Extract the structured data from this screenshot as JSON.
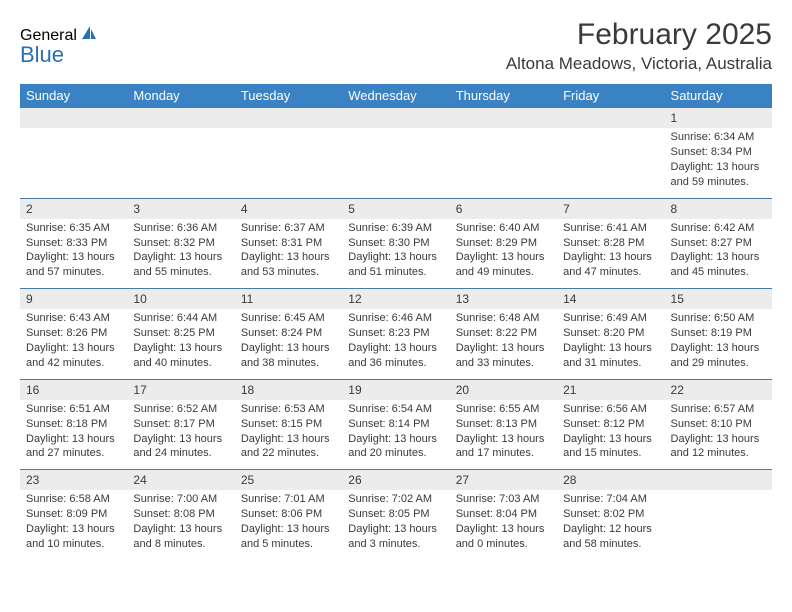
{
  "logo": {
    "text1": "General",
    "text2": "Blue"
  },
  "title": "February 2025",
  "location": "Altona Meadows, Victoria, Australia",
  "colors": {
    "header_bg": "#3b82c4",
    "header_text": "#ffffff",
    "daynum_bg": "#ececec",
    "border": "#4a7aa8",
    "text": "#3a3a3a",
    "logo_gray": "#5a5a5a",
    "logo_blue": "#2a6fb5"
  },
  "day_headers": [
    "Sunday",
    "Monday",
    "Tuesday",
    "Wednesday",
    "Thursday",
    "Friday",
    "Saturday"
  ],
  "weeks": [
    [
      null,
      null,
      null,
      null,
      null,
      null,
      {
        "n": "1",
        "sr": "6:34 AM",
        "ss": "8:34 PM",
        "dl": "13 hours and 59 minutes."
      }
    ],
    [
      {
        "n": "2",
        "sr": "6:35 AM",
        "ss": "8:33 PM",
        "dl": "13 hours and 57 minutes."
      },
      {
        "n": "3",
        "sr": "6:36 AM",
        "ss": "8:32 PM",
        "dl": "13 hours and 55 minutes."
      },
      {
        "n": "4",
        "sr": "6:37 AM",
        "ss": "8:31 PM",
        "dl": "13 hours and 53 minutes."
      },
      {
        "n": "5",
        "sr": "6:39 AM",
        "ss": "8:30 PM",
        "dl": "13 hours and 51 minutes."
      },
      {
        "n": "6",
        "sr": "6:40 AM",
        "ss": "8:29 PM",
        "dl": "13 hours and 49 minutes."
      },
      {
        "n": "7",
        "sr": "6:41 AM",
        "ss": "8:28 PM",
        "dl": "13 hours and 47 minutes."
      },
      {
        "n": "8",
        "sr": "6:42 AM",
        "ss": "8:27 PM",
        "dl": "13 hours and 45 minutes."
      }
    ],
    [
      {
        "n": "9",
        "sr": "6:43 AM",
        "ss": "8:26 PM",
        "dl": "13 hours and 42 minutes."
      },
      {
        "n": "10",
        "sr": "6:44 AM",
        "ss": "8:25 PM",
        "dl": "13 hours and 40 minutes."
      },
      {
        "n": "11",
        "sr": "6:45 AM",
        "ss": "8:24 PM",
        "dl": "13 hours and 38 minutes."
      },
      {
        "n": "12",
        "sr": "6:46 AM",
        "ss": "8:23 PM",
        "dl": "13 hours and 36 minutes."
      },
      {
        "n": "13",
        "sr": "6:48 AM",
        "ss": "8:22 PM",
        "dl": "13 hours and 33 minutes."
      },
      {
        "n": "14",
        "sr": "6:49 AM",
        "ss": "8:20 PM",
        "dl": "13 hours and 31 minutes."
      },
      {
        "n": "15",
        "sr": "6:50 AM",
        "ss": "8:19 PM",
        "dl": "13 hours and 29 minutes."
      }
    ],
    [
      {
        "n": "16",
        "sr": "6:51 AM",
        "ss": "8:18 PM",
        "dl": "13 hours and 27 minutes."
      },
      {
        "n": "17",
        "sr": "6:52 AM",
        "ss": "8:17 PM",
        "dl": "13 hours and 24 minutes."
      },
      {
        "n": "18",
        "sr": "6:53 AM",
        "ss": "8:15 PM",
        "dl": "13 hours and 22 minutes."
      },
      {
        "n": "19",
        "sr": "6:54 AM",
        "ss": "8:14 PM",
        "dl": "13 hours and 20 minutes."
      },
      {
        "n": "20",
        "sr": "6:55 AM",
        "ss": "8:13 PM",
        "dl": "13 hours and 17 minutes."
      },
      {
        "n": "21",
        "sr": "6:56 AM",
        "ss": "8:12 PM",
        "dl": "13 hours and 15 minutes."
      },
      {
        "n": "22",
        "sr": "6:57 AM",
        "ss": "8:10 PM",
        "dl": "13 hours and 12 minutes."
      }
    ],
    [
      {
        "n": "23",
        "sr": "6:58 AM",
        "ss": "8:09 PM",
        "dl": "13 hours and 10 minutes."
      },
      {
        "n": "24",
        "sr": "7:00 AM",
        "ss": "8:08 PM",
        "dl": "13 hours and 8 minutes."
      },
      {
        "n": "25",
        "sr": "7:01 AM",
        "ss": "8:06 PM",
        "dl": "13 hours and 5 minutes."
      },
      {
        "n": "26",
        "sr": "7:02 AM",
        "ss": "8:05 PM",
        "dl": "13 hours and 3 minutes."
      },
      {
        "n": "27",
        "sr": "7:03 AM",
        "ss": "8:04 PM",
        "dl": "13 hours and 0 minutes."
      },
      {
        "n": "28",
        "sr": "7:04 AM",
        "ss": "8:02 PM",
        "dl": "12 hours and 58 minutes."
      },
      null
    ]
  ],
  "labels": {
    "sunrise": "Sunrise: ",
    "sunset": "Sunset: ",
    "daylight": "Daylight: "
  }
}
